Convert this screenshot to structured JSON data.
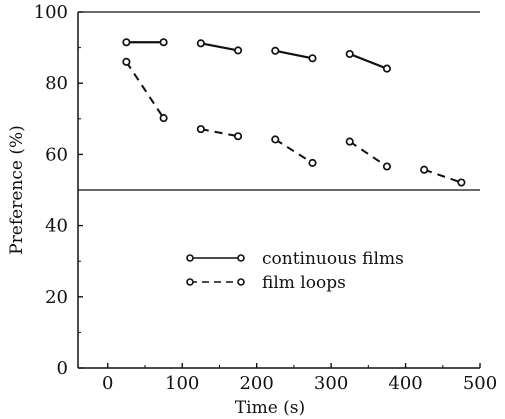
{
  "chart_data": {
    "type": "line",
    "title": "",
    "xlabel": "Time (s)",
    "ylabel": "Preference (%)",
    "xlim": [
      -40,
      500
    ],
    "ylim": [
      0,
      100
    ],
    "x_ticks": [
      "0",
      "100",
      "200",
      "300",
      "400",
      "500"
    ],
    "y_ticks": [
      "0",
      "20",
      "40",
      "60",
      "80",
      "100"
    ],
    "reference_line_y": 50,
    "grid": false,
    "legend_position": "center",
    "series": [
      {
        "name": "continuous films",
        "style": "solid",
        "segments": [
          [
            [
              25,
              91.5
            ],
            [
              75,
              91.5
            ]
          ],
          [
            [
              125,
              91.2
            ],
            [
              175,
              89.2
            ]
          ],
          [
            [
              225,
              89.1
            ],
            [
              275,
              87.0
            ]
          ],
          [
            [
              325,
              88.2
            ],
            [
              375,
              84.1
            ]
          ]
        ]
      },
      {
        "name": "film loops",
        "style": "dashed",
        "segments": [
          [
            [
              25,
              86.0
            ],
            [
              75,
              70.2
            ]
          ],
          [
            [
              125,
              67.1
            ],
            [
              175,
              65.1
            ]
          ],
          [
            [
              225,
              64.2
            ],
            [
              275,
              57.6
            ]
          ],
          [
            [
              325,
              63.6
            ],
            [
              375,
              56.6
            ]
          ],
          [
            [
              425,
              55.7
            ],
            [
              475,
              52.1
            ]
          ]
        ]
      }
    ]
  },
  "colors": {
    "ink": "#111111",
    "background": "#ffffff"
  }
}
